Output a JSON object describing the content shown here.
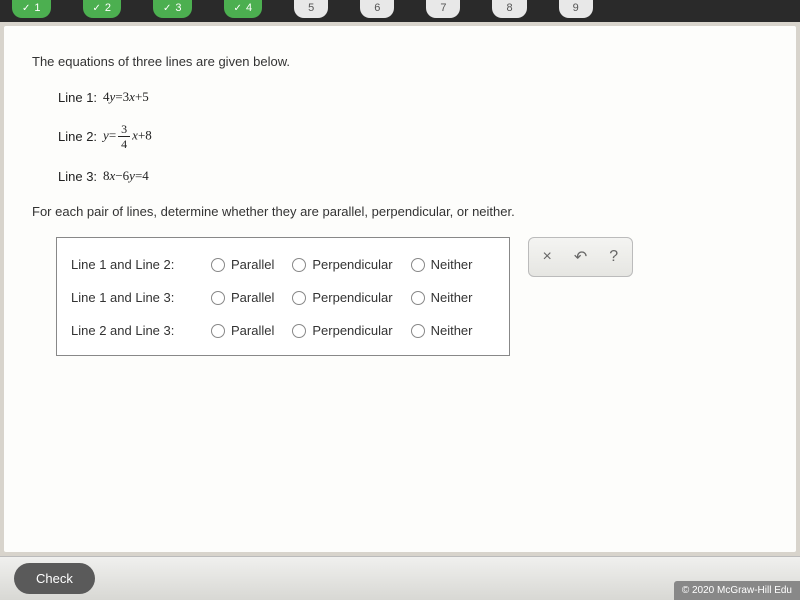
{
  "tabs": {
    "t1": "1",
    "t2": "2",
    "t3": "3",
    "t4": "4",
    "t5": "5",
    "t6": "6",
    "t7": "7",
    "t8": "8",
    "t9": "9",
    "check_glyph": "✓"
  },
  "intro": "The equations of three lines are given below.",
  "equations": {
    "line1_label": "Line 1:",
    "line1_lhs_coef": "4",
    "line1_lhs_var": "y",
    "line1_eq": "=",
    "line1_rhs_coef": "3",
    "line1_rhs_var": "x",
    "line1_plus": "+",
    "line1_const": "5",
    "line2_label": "Line 2:",
    "line2_lhs_var": "y",
    "line2_eq": "=",
    "line2_frac_top": "3",
    "line2_frac_bot": "4",
    "line2_rhs_var": "x",
    "line2_plus": "+",
    "line2_const": "8",
    "line3_label": "Line 3:",
    "line3_a_coef": "8",
    "line3_a_var": "x",
    "line3_minus": "−",
    "line3_b_coef": "6",
    "line3_b_var": "y",
    "line3_eq": "=",
    "line3_const": "4"
  },
  "instruction": "For each pair of lines, determine whether they are parallel, perpendicular, or neither.",
  "pairs": {
    "p1": "Line 1 and Line 2:",
    "p2": "Line 1 and Line 3:",
    "p3": "Line 2 and Line 3:"
  },
  "options": {
    "parallel": "Parallel",
    "perpendicular": "Perpendicular",
    "neither": "Neither"
  },
  "tools": {
    "clear": "×",
    "reset": "↶",
    "help": "?"
  },
  "buttons": {
    "check": "Check"
  },
  "footer": {
    "copyright": "© 2020 McGraw-Hill Edu"
  },
  "colors": {
    "tab_green": "#4caf50",
    "bg": "#d8d4cc",
    "panel": "#fdfdfb",
    "border": "#888"
  }
}
